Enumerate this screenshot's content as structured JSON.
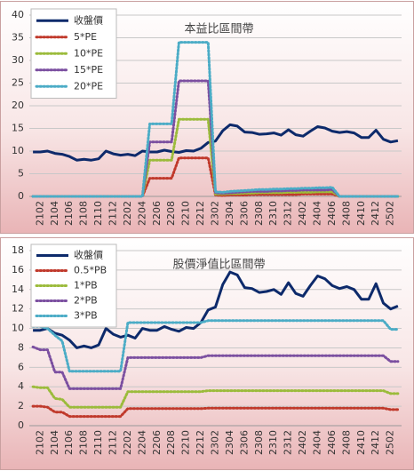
{
  "chart_data": [
    {
      "type": "line",
      "title": "本益比區間帶",
      "legend": "upper left",
      "grid": true,
      "categories": [
        null,
        "2102",
        null,
        "2104",
        null,
        "2106",
        null,
        "2108",
        null,
        "2110",
        null,
        "2112",
        null,
        "2202",
        null,
        "2204",
        null,
        "2206",
        null,
        "2208",
        null,
        "2210",
        null,
        "2212",
        null,
        "2302",
        null,
        "2304",
        null,
        "2306",
        null,
        "2308",
        null,
        "2310",
        null,
        "2312",
        null,
        "2402",
        null,
        "2404",
        null,
        "2406",
        null,
        "2408",
        null,
        "2410",
        null,
        "2412",
        null,
        "2502",
        null
      ],
      "ylim": [
        0,
        40
      ],
      "yticks": [
        0,
        5,
        10,
        15,
        20,
        25,
        30,
        35,
        40
      ],
      "series": [
        {
          "name": "收盤價",
          "color": "#0d2a6b",
          "linestyle": "solid",
          "values": [
            9.8,
            9.8,
            10.0,
            9.5,
            9.3,
            8.8,
            8.0,
            8.2,
            8.0,
            8.3,
            10.0,
            9.4,
            9.1,
            9.3,
            9.0,
            10.0,
            9.8,
            9.8,
            10.2,
            9.9,
            9.7,
            10.1,
            10.0,
            10.6,
            11.9,
            12.2,
            14.5,
            15.8,
            15.5,
            14.2,
            14.1,
            13.7,
            13.8,
            14.0,
            13.5,
            14.7,
            13.6,
            13.3,
            14.4,
            15.4,
            15.1,
            14.4,
            14.1,
            14.3,
            14.0,
            13.0,
            13.0,
            14.6,
            12.6,
            12.0,
            12.3
          ]
        },
        {
          "name": "5*PE",
          "color": "#c0392b",
          "linestyle": "dotted",
          "values": [
            0,
            0,
            0,
            0,
            0,
            0,
            0,
            0,
            0,
            0,
            0,
            0,
            0,
            0,
            0,
            0,
            4,
            4,
            4,
            4,
            8.5,
            8.5,
            8.5,
            8.5,
            8.5,
            0.3,
            0.2,
            0.3,
            0.3,
            0.3,
            0.4,
            0.4,
            0.4,
            0.4,
            0.4,
            0.4,
            0.4,
            0.5,
            0.5,
            0.5,
            0.5,
            0.5,
            0,
            0,
            0,
            0,
            0,
            0,
            0,
            0,
            0
          ]
        },
        {
          "name": "10*PE",
          "color": "#9bbb3b",
          "linestyle": "dotted",
          "values": [
            0,
            0,
            0,
            0,
            0,
            0,
            0,
            0,
            0,
            0,
            0,
            0,
            0,
            0,
            0,
            0,
            8,
            8,
            8,
            8,
            17,
            17,
            17,
            17,
            17,
            0.5,
            0.5,
            0.6,
            0.6,
            0.7,
            0.7,
            0.8,
            0.8,
            0.8,
            0.8,
            0.9,
            0.9,
            0.9,
            0.9,
            1.0,
            1.0,
            1.0,
            0,
            0,
            0,
            0,
            0,
            0,
            0,
            0,
            0
          ]
        },
        {
          "name": "15*PE",
          "color": "#7b4fa0",
          "linestyle": "dotted",
          "values": [
            0,
            0,
            0,
            0,
            0,
            0,
            0,
            0,
            0,
            0,
            0,
            0,
            0,
            0,
            0,
            0,
            12,
            12,
            12,
            12,
            25.5,
            25.5,
            25.5,
            25.5,
            25.5,
            0.8,
            0.7,
            0.8,
            0.9,
            1.0,
            1.1,
            1.1,
            1.1,
            1.2,
            1.2,
            1.3,
            1.3,
            1.4,
            1.4,
            1.4,
            1.4,
            1.5,
            0,
            0,
            0,
            0,
            0,
            0,
            0,
            0,
            0
          ]
        },
        {
          "name": "20*PE",
          "color": "#4bacc6",
          "linestyle": "dotted",
          "values": [
            0,
            0,
            0,
            0,
            0,
            0,
            0,
            0,
            0,
            0,
            0,
            0,
            0,
            0,
            0,
            0,
            16,
            16,
            16,
            16,
            34,
            34,
            34,
            34,
            34,
            1.0,
            0.9,
            1.1,
            1.2,
            1.3,
            1.4,
            1.5,
            1.5,
            1.6,
            1.6,
            1.7,
            1.7,
            1.8,
            1.8,
            1.9,
            1.9,
            2.0,
            0,
            0,
            0,
            0,
            0,
            0,
            0,
            0,
            0
          ]
        }
      ]
    },
    {
      "type": "line",
      "title": "股價淨值比區間帶",
      "legend": "upper left",
      "grid": true,
      "categories": [
        null,
        "2102",
        null,
        "2104",
        null,
        "2106",
        null,
        "2108",
        null,
        "2110",
        null,
        "2112",
        null,
        "2202",
        null,
        "2204",
        null,
        "2206",
        null,
        "2208",
        null,
        "2210",
        null,
        "2212",
        null,
        "2302",
        null,
        "2304",
        null,
        "2306",
        null,
        "2308",
        null,
        "2310",
        null,
        "2312",
        null,
        "2402",
        null,
        "2404",
        null,
        "2406",
        null,
        "2408",
        null,
        "2410",
        null,
        "2412",
        null,
        "2502",
        null
      ],
      "ylim": [
        0,
        18
      ],
      "yticks": [
        0,
        2,
        4,
        6,
        8,
        10,
        12,
        14,
        16,
        18
      ],
      "series": [
        {
          "name": "收盤價",
          "color": "#0d2a6b",
          "linestyle": "solid",
          "values": [
            9.8,
            9.8,
            10.0,
            9.5,
            9.3,
            8.8,
            8.0,
            8.2,
            8.0,
            8.3,
            10.0,
            9.4,
            9.1,
            9.3,
            9.0,
            10.0,
            9.8,
            9.8,
            10.2,
            9.9,
            9.7,
            10.1,
            10.0,
            10.6,
            11.9,
            12.2,
            14.5,
            15.8,
            15.5,
            14.2,
            14.1,
            13.7,
            13.8,
            14.0,
            13.5,
            14.7,
            13.6,
            13.3,
            14.4,
            15.4,
            15.1,
            14.4,
            14.1,
            14.3,
            14.0,
            13.0,
            13.0,
            14.6,
            12.6,
            12.0,
            12.3
          ]
        },
        {
          "name": "0.5*PB",
          "color": "#c0392b",
          "linestyle": "dotted",
          "values": [
            2.0,
            2.0,
            1.9,
            1.4,
            1.4,
            0.95,
            0.95,
            0.95,
            0.95,
            0.95,
            0.95,
            0.95,
            0.95,
            1.75,
            1.75,
            1.75,
            1.75,
            1.75,
            1.75,
            1.75,
            1.75,
            1.75,
            1.75,
            1.75,
            1.8,
            1.8,
            1.8,
            1.8,
            1.8,
            1.8,
            1.8,
            1.8,
            1.8,
            1.8,
            1.8,
            1.8,
            1.8,
            1.8,
            1.8,
            1.8,
            1.8,
            1.8,
            1.8,
            1.8,
            1.8,
            1.8,
            1.8,
            1.8,
            1.8,
            1.65,
            1.65
          ]
        },
        {
          "name": "1*PB",
          "color": "#9bbb3b",
          "linestyle": "dotted",
          "values": [
            4.0,
            3.9,
            3.9,
            2.8,
            2.7,
            1.9,
            1.9,
            1.9,
            1.9,
            1.9,
            1.9,
            1.9,
            1.9,
            3.5,
            3.5,
            3.5,
            3.5,
            3.5,
            3.5,
            3.5,
            3.5,
            3.5,
            3.5,
            3.5,
            3.6,
            3.6,
            3.6,
            3.6,
            3.6,
            3.6,
            3.6,
            3.6,
            3.6,
            3.6,
            3.6,
            3.6,
            3.6,
            3.6,
            3.6,
            3.6,
            3.6,
            3.6,
            3.6,
            3.6,
            3.6,
            3.6,
            3.6,
            3.6,
            3.6,
            3.3,
            3.3
          ]
        },
        {
          "name": "2*PB",
          "color": "#7b4fa0",
          "linestyle": "dotted",
          "values": [
            8.1,
            7.8,
            7.8,
            5.5,
            5.5,
            3.8,
            3.8,
            3.8,
            3.8,
            3.8,
            3.8,
            3.8,
            3.8,
            7.0,
            7.0,
            7.0,
            7.0,
            7.0,
            7.0,
            7.0,
            7.0,
            7.0,
            7.0,
            7.0,
            7.2,
            7.2,
            7.2,
            7.2,
            7.2,
            7.2,
            7.2,
            7.2,
            7.2,
            7.2,
            7.2,
            7.2,
            7.2,
            7.2,
            7.2,
            7.2,
            7.2,
            7.2,
            7.2,
            7.2,
            7.2,
            7.2,
            7.2,
            7.2,
            7.2,
            6.6,
            6.6
          ]
        },
        {
          "name": "3*PB",
          "color": "#4bacc6",
          "linestyle": "dotted",
          "values": [
            10.2,
            10.2,
            10.0,
            9.3,
            8.7,
            5.6,
            5.6,
            5.6,
            5.6,
            5.6,
            5.6,
            5.6,
            5.6,
            10.6,
            10.6,
            10.6,
            10.6,
            10.6,
            10.6,
            10.6,
            10.6,
            10.6,
            10.6,
            10.6,
            10.8,
            10.8,
            10.8,
            10.8,
            10.8,
            10.8,
            10.8,
            10.8,
            10.8,
            10.8,
            10.8,
            10.8,
            10.8,
            10.8,
            10.8,
            10.8,
            10.8,
            10.8,
            10.8,
            10.8,
            10.8,
            10.8,
            10.8,
            10.8,
            10.8,
            9.9,
            9.9
          ]
        }
      ]
    }
  ]
}
